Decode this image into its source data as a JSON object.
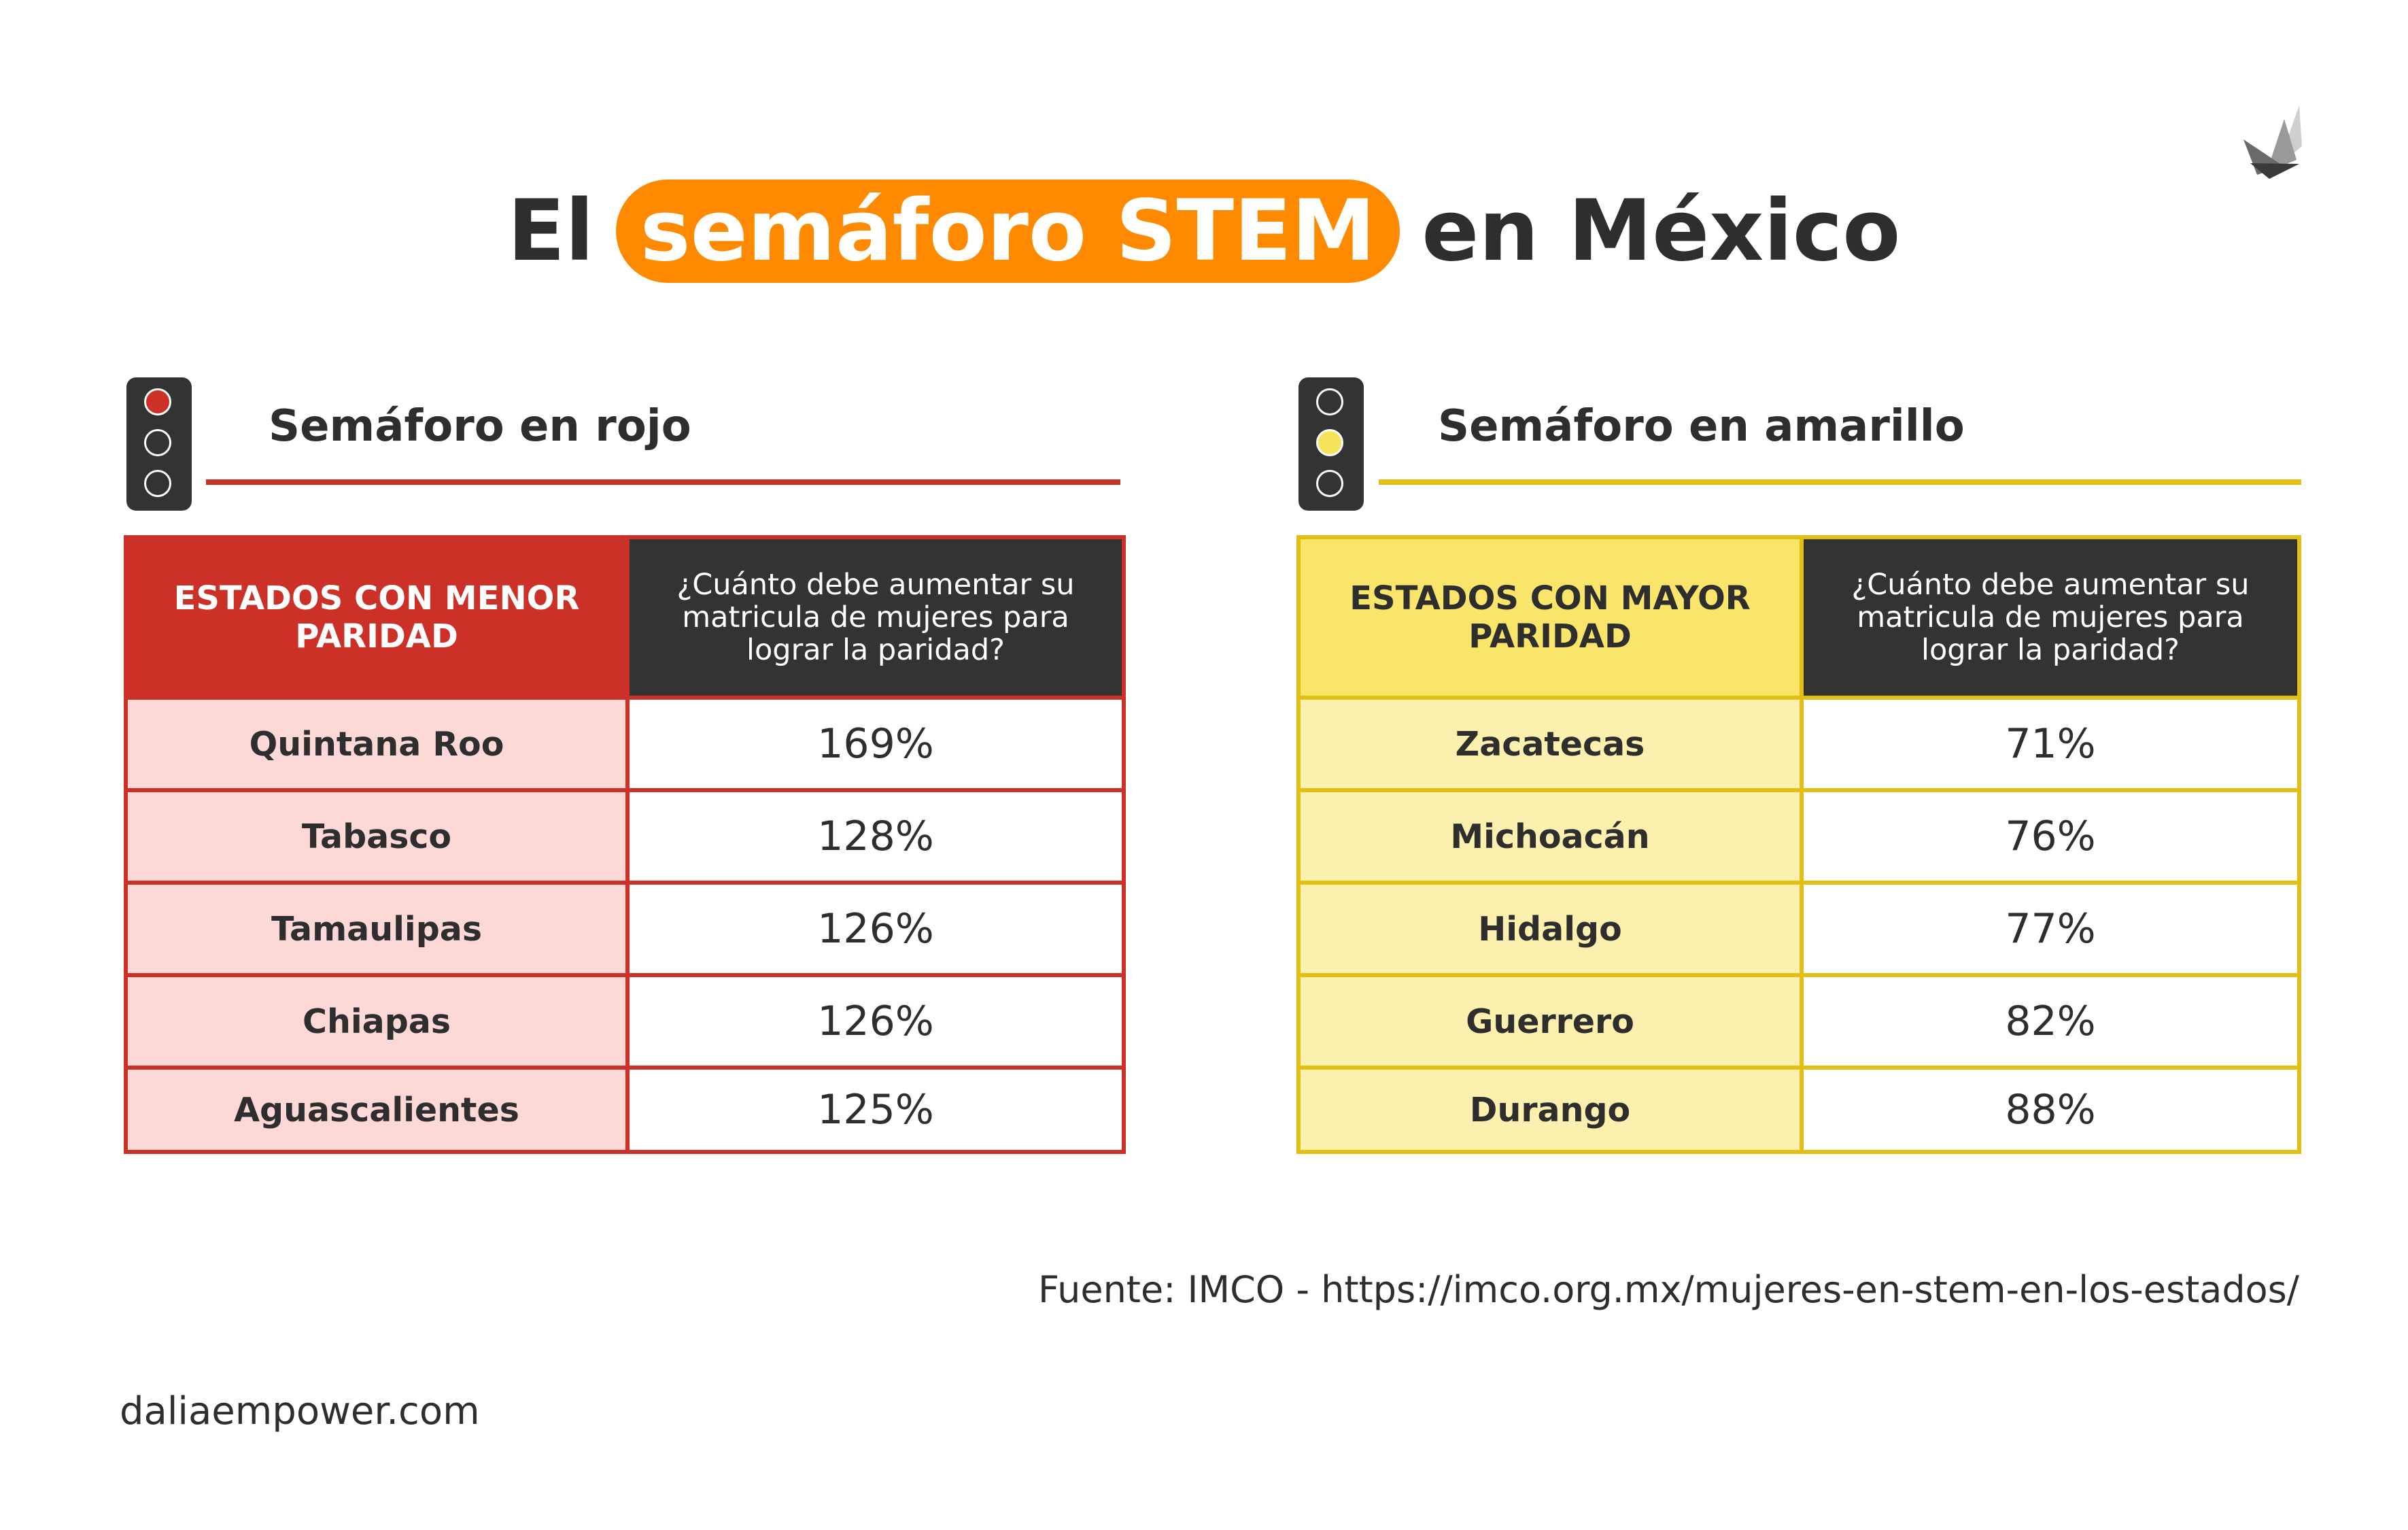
{
  "title": {
    "prefix": "El",
    "highlight": "semáforo STEM",
    "suffix": "en México"
  },
  "colors": {
    "orange": "#ff8a00",
    "red": "#cc3127",
    "red_light": "#fcd8d6",
    "yellow": "#e2bf12",
    "yellow_header": "#f9e56a",
    "yellow_light": "#fbf0ae",
    "dark": "#333333"
  },
  "red_section": {
    "title": "Semáforo en rojo",
    "header_left": "ESTADOS CON MENOR PARIDAD",
    "header_right": "¿Cuánto debe aumentar su matricula de mujeres para lograr la paridad?",
    "rows": [
      {
        "state": "Quintana Roo",
        "value": "169%"
      },
      {
        "state": "Tabasco",
        "value": "128%"
      },
      {
        "state": "Tamaulipas",
        "value": "126%"
      },
      {
        "state": "Chiapas",
        "value": "126%"
      },
      {
        "state": "Aguascalientes",
        "value": "125%"
      }
    ]
  },
  "yellow_section": {
    "title": "Semáforo en amarillo",
    "header_left": "ESTADOS CON MAYOR PARIDAD",
    "header_right": "¿Cuánto debe aumentar su matricula de mujeres para lograr la paridad?",
    "rows": [
      {
        "state": "Zacatecas",
        "value": "71%"
      },
      {
        "state": "Michoacán",
        "value": "76%"
      },
      {
        "state": "Hidalgo",
        "value": "77%"
      },
      {
        "state": "Guerrero",
        "value": "82%"
      },
      {
        "state": "Durango",
        "value": "88%"
      }
    ]
  },
  "source": "Fuente: IMCO - https://imco.org.mx/mujeres-en-stem-en-los-estados/",
  "footer": "daliaempower.com",
  "logo_icon": "leaf-logo-icon"
}
